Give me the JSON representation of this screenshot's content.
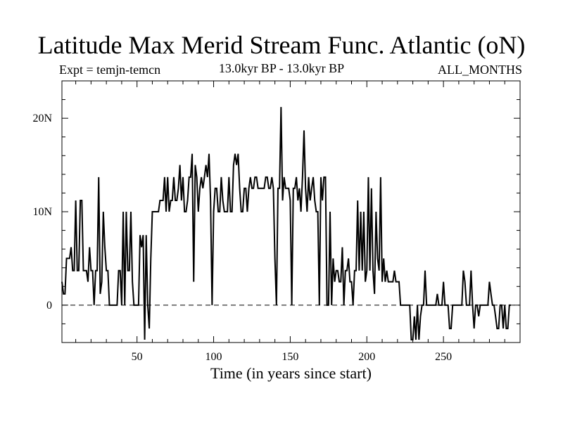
{
  "chart_data": {
    "type": "line",
    "title": "Latitude Max Merid Stream Func. Atlantic (oN)",
    "subtitle_left": "Expt = temjn-temcn",
    "subtitle_center": "13.0kyr BP - 13.0kyr BP",
    "subtitle_right": "ALL_MONTHS",
    "xlabel": "Time (in years since start)",
    "ylabel": "",
    "xlim": [
      1,
      300
    ],
    "ylim": [
      -4,
      24
    ],
    "xticks": [
      50,
      100,
      150,
      200,
      250
    ],
    "xtick_labels": [
      "50",
      "100",
      "150",
      "200",
      "250"
    ],
    "yticks": [
      0,
      10,
      20
    ],
    "ytick_labels": [
      "0",
      "10N",
      "20N"
    ],
    "reference_line": {
      "y": 0,
      "style": "dashed"
    },
    "series": [
      {
        "name": "temjn-temcn",
        "values": [
          2.5,
          1.2,
          1.2,
          5,
          5,
          5,
          6.2,
          3.7,
          3.7,
          11.2,
          3.7,
          3.7,
          11.2,
          11.2,
          3.7,
          3.7,
          3.7,
          2.5,
          6.2,
          3.7,
          3.7,
          0,
          3.7,
          3.7,
          13.7,
          1.2,
          2.5,
          10,
          6.2,
          3.7,
          3.7,
          0,
          0,
          0,
          0,
          0,
          0,
          3.7,
          3.7,
          0,
          10,
          0,
          10,
          3.7,
          3.7,
          10,
          2.5,
          0,
          0,
          0,
          0,
          7.5,
          6.2,
          7.5,
          -3.7,
          7.5,
          0,
          -2.5,
          5,
          10,
          10,
          10,
          10,
          10,
          11.2,
          11.2,
          11.2,
          13.7,
          10,
          13.7,
          10,
          11.2,
          11.2,
          13.7,
          11.2,
          11.2,
          12.5,
          15,
          11.2,
          13.7,
          10,
          10,
          11.2,
          13.7,
          13.7,
          16.2,
          2.5,
          15,
          13.7,
          10,
          12.5,
          13.7,
          12.5,
          13.7,
          15,
          13.7,
          16.2,
          11.2,
          0,
          10,
          12.5,
          12.5,
          10,
          10,
          13.7,
          11.2,
          10,
          10,
          10,
          13.7,
          10,
          10,
          15,
          16.2,
          15,
          16.2,
          12.5,
          10,
          10,
          12.5,
          12.5,
          10,
          12.5,
          13.7,
          12.5,
          12.5,
          13.7,
          13.7,
          12.5,
          12.5,
          12.5,
          12.5,
          12.5,
          13.7,
          13.7,
          12.5,
          12.5,
          13.7,
          12.5,
          5,
          0,
          12.5,
          12.5,
          21.2,
          11.2,
          13.7,
          12.5,
          12.5,
          12.5,
          11.2,
          0,
          12.5,
          12.5,
          13.7,
          11.2,
          12.5,
          10,
          13.7,
          18.7,
          12.5,
          10,
          13.7,
          11.2,
          12.5,
          13.7,
          11.2,
          10,
          10,
          0,
          13.7,
          11.2,
          13.7,
          13.7,
          0,
          0,
          10,
          0,
          5,
          2.5,
          3.7,
          3.7,
          2.5,
          2.5,
          6.2,
          0,
          3.7,
          3.7,
          5,
          2.5,
          2.5,
          0,
          3.7,
          3.7,
          11.2,
          3.7,
          10,
          3.7,
          10,
          2.5,
          3.7,
          13.7,
          3.7,
          12.5,
          3.7,
          1.2,
          10,
          5,
          3.7,
          13.7,
          2.5,
          5,
          2.5,
          3.7,
          2.5,
          2.5,
          2.5,
          2.5,
          3.7,
          2.5,
          2.5,
          2.5,
          0,
          0,
          0,
          0,
          0,
          0,
          0,
          -3.7,
          -3.7,
          -1.2,
          -3.7,
          0,
          -3.7,
          -1.2,
          0,
          0,
          3.7,
          0,
          0,
          0,
          0,
          0,
          0,
          0,
          1.2,
          0,
          0,
          0,
          2.5,
          0,
          0,
          0,
          -2.5,
          -2.5,
          0,
          0,
          0,
          0,
          0,
          0,
          0,
          3.7,
          2.5,
          0,
          0,
          0,
          3.7,
          0,
          -2.5,
          0,
          0,
          -1.2,
          0,
          0,
          0,
          0,
          0,
          0,
          2.5,
          1.2,
          0,
          0,
          -1.2,
          -2.5,
          -2.5,
          0,
          0,
          -2.5,
          0,
          -2.5,
          -2.5,
          0,
          0
        ]
      }
    ]
  }
}
